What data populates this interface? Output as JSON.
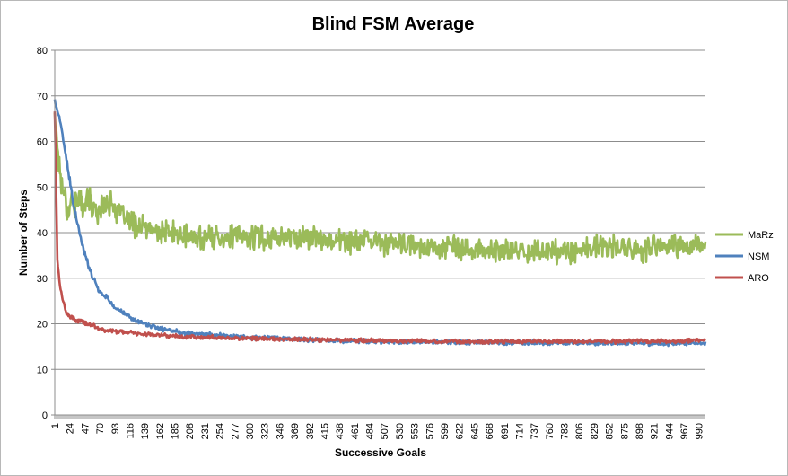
{
  "chart_data": {
    "type": "line",
    "title": "Blind FSM Average",
    "xlabel": "Successive Goals",
    "ylabel": "Number of Steps",
    "xlim": [
      1,
      1000
    ],
    "ylim": [
      0,
      80
    ],
    "y_ticks": [
      0,
      10,
      20,
      30,
      40,
      50,
      60,
      70,
      80
    ],
    "x_tick_labels": [
      "1",
      "24",
      "47",
      "70",
      "93",
      "116",
      "139",
      "162",
      "185",
      "208",
      "231",
      "254",
      "277",
      "300",
      "323",
      "346",
      "369",
      "392",
      "415",
      "438",
      "461",
      "484",
      "507",
      "530",
      "553",
      "576",
      "599",
      "622",
      "645",
      "668",
      "691",
      "714",
      "737",
      "760",
      "783",
      "806",
      "829",
      "852",
      "875",
      "898",
      "921",
      "944",
      "967",
      "990"
    ],
    "grid": "horizontal",
    "legend_position": "right",
    "series": [
      {
        "name": "MaRz",
        "color": "#9bbb59",
        "x": [
          1,
          10,
          20,
          30,
          40,
          50,
          60,
          70,
          80,
          90,
          100,
          120,
          140,
          160,
          180,
          200,
          250,
          300,
          350,
          400,
          450,
          500,
          550,
          600,
          650,
          700,
          750,
          800,
          850,
          900,
          950,
          1000
        ],
        "values": [
          66,
          52,
          46,
          47,
          46,
          48,
          45,
          45,
          47,
          46,
          44,
          42,
          41,
          40,
          40,
          39,
          39,
          39,
          39,
          39,
          38,
          38,
          37,
          37,
          36,
          36,
          36,
          36,
          37,
          36,
          37,
          37
        ]
      },
      {
        "name": "NSM",
        "color": "#4f81bd",
        "x": [
          1,
          10,
          20,
          30,
          40,
          50,
          60,
          70,
          80,
          90,
          100,
          120,
          140,
          160,
          180,
          200,
          250,
          300,
          350,
          400,
          450,
          500,
          550,
          600,
          650,
          700,
          750,
          800,
          850,
          900,
          950,
          1000
        ],
        "values": [
          69,
          64,
          55,
          46,
          39,
          34,
          30,
          27,
          26,
          24,
          23,
          21,
          20,
          19,
          18.5,
          18,
          17.5,
          17,
          16.8,
          16.5,
          16.3,
          16.2,
          16,
          16,
          16,
          15.8,
          15.8,
          15.8,
          15.8,
          15.7,
          15.7,
          15.7
        ]
      },
      {
        "name": "ARO",
        "color": "#c0504d",
        "x": [
          1,
          5,
          10,
          20,
          30,
          40,
          50,
          60,
          70,
          80,
          90,
          100,
          120,
          140,
          160,
          180,
          200,
          250,
          300,
          350,
          400,
          450,
          500,
          550,
          600,
          650,
          700,
          750,
          800,
          850,
          900,
          950,
          1000
        ],
        "values": [
          67,
          34,
          27,
          22,
          21,
          20.5,
          20,
          19.5,
          19,
          18.5,
          18.5,
          18.2,
          18,
          17.8,
          17.5,
          17.3,
          17.2,
          17,
          16.8,
          16.6,
          16.5,
          16.4,
          16.3,
          16.2,
          16.2,
          16.1,
          16.1,
          16.1,
          16.1,
          16.1,
          16.2,
          16.2,
          16.3
        ]
      }
    ]
  }
}
